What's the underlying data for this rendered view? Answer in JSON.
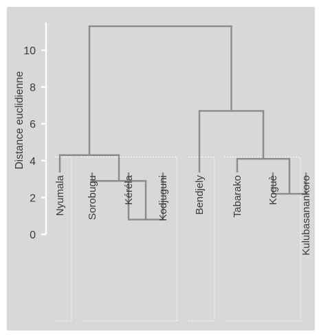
{
  "chart_data": {
    "type": "dendrogram",
    "ylabel": "Distance euclidienne",
    "ylim": [
      0,
      11.5
    ],
    "yticks": [
      0,
      2,
      4,
      6,
      8,
      10
    ],
    "grid": false,
    "leaves": [
      "Nyumala",
      "Sorobugu",
      "Kéréla",
      "Kodjuguni",
      "Bendjely",
      "Tabarako",
      "Koguè",
      "Kulubasanankoro"
    ],
    "merges": [
      {
        "left": "Kéréla",
        "right": "Kodjuguni",
        "height": 0.8
      },
      {
        "left": "Sorobugu",
        "right": "Kéréla + Kodjuguni",
        "height": 2.9
      },
      {
        "left": "Nyumala",
        "right": "Sorobugu + Kéréla + Kodjuguni",
        "height": 4.3
      },
      {
        "left": "Koguè",
        "right": "Kulubasanankoro",
        "height": 2.2
      },
      {
        "left": "Tabarako",
        "right": "Koguè + Kulubasanankoro",
        "height": 4.1
      },
      {
        "left": "Bendjely",
        "right": "Tabarako + Koguè + Kulubasanankoro",
        "height": 6.7
      },
      {
        "left": "Nyumala group",
        "right": "Bendjely group",
        "height": 11.3
      }
    ],
    "groups": [
      [
        "Nyumala"
      ],
      [
        "Sorobugu",
        "Kéréla",
        "Kodjuguni"
      ],
      [
        "Bendjely"
      ],
      [
        "Tabarako",
        "Koguè",
        "Kulubasanankoro"
      ]
    ],
    "colors": {
      "panel": "#d8d8d8",
      "branch": "#8a8a8a",
      "axis": "#ffffff",
      "group_box": "#ffffff",
      "text": "#3a3a3a"
    }
  }
}
